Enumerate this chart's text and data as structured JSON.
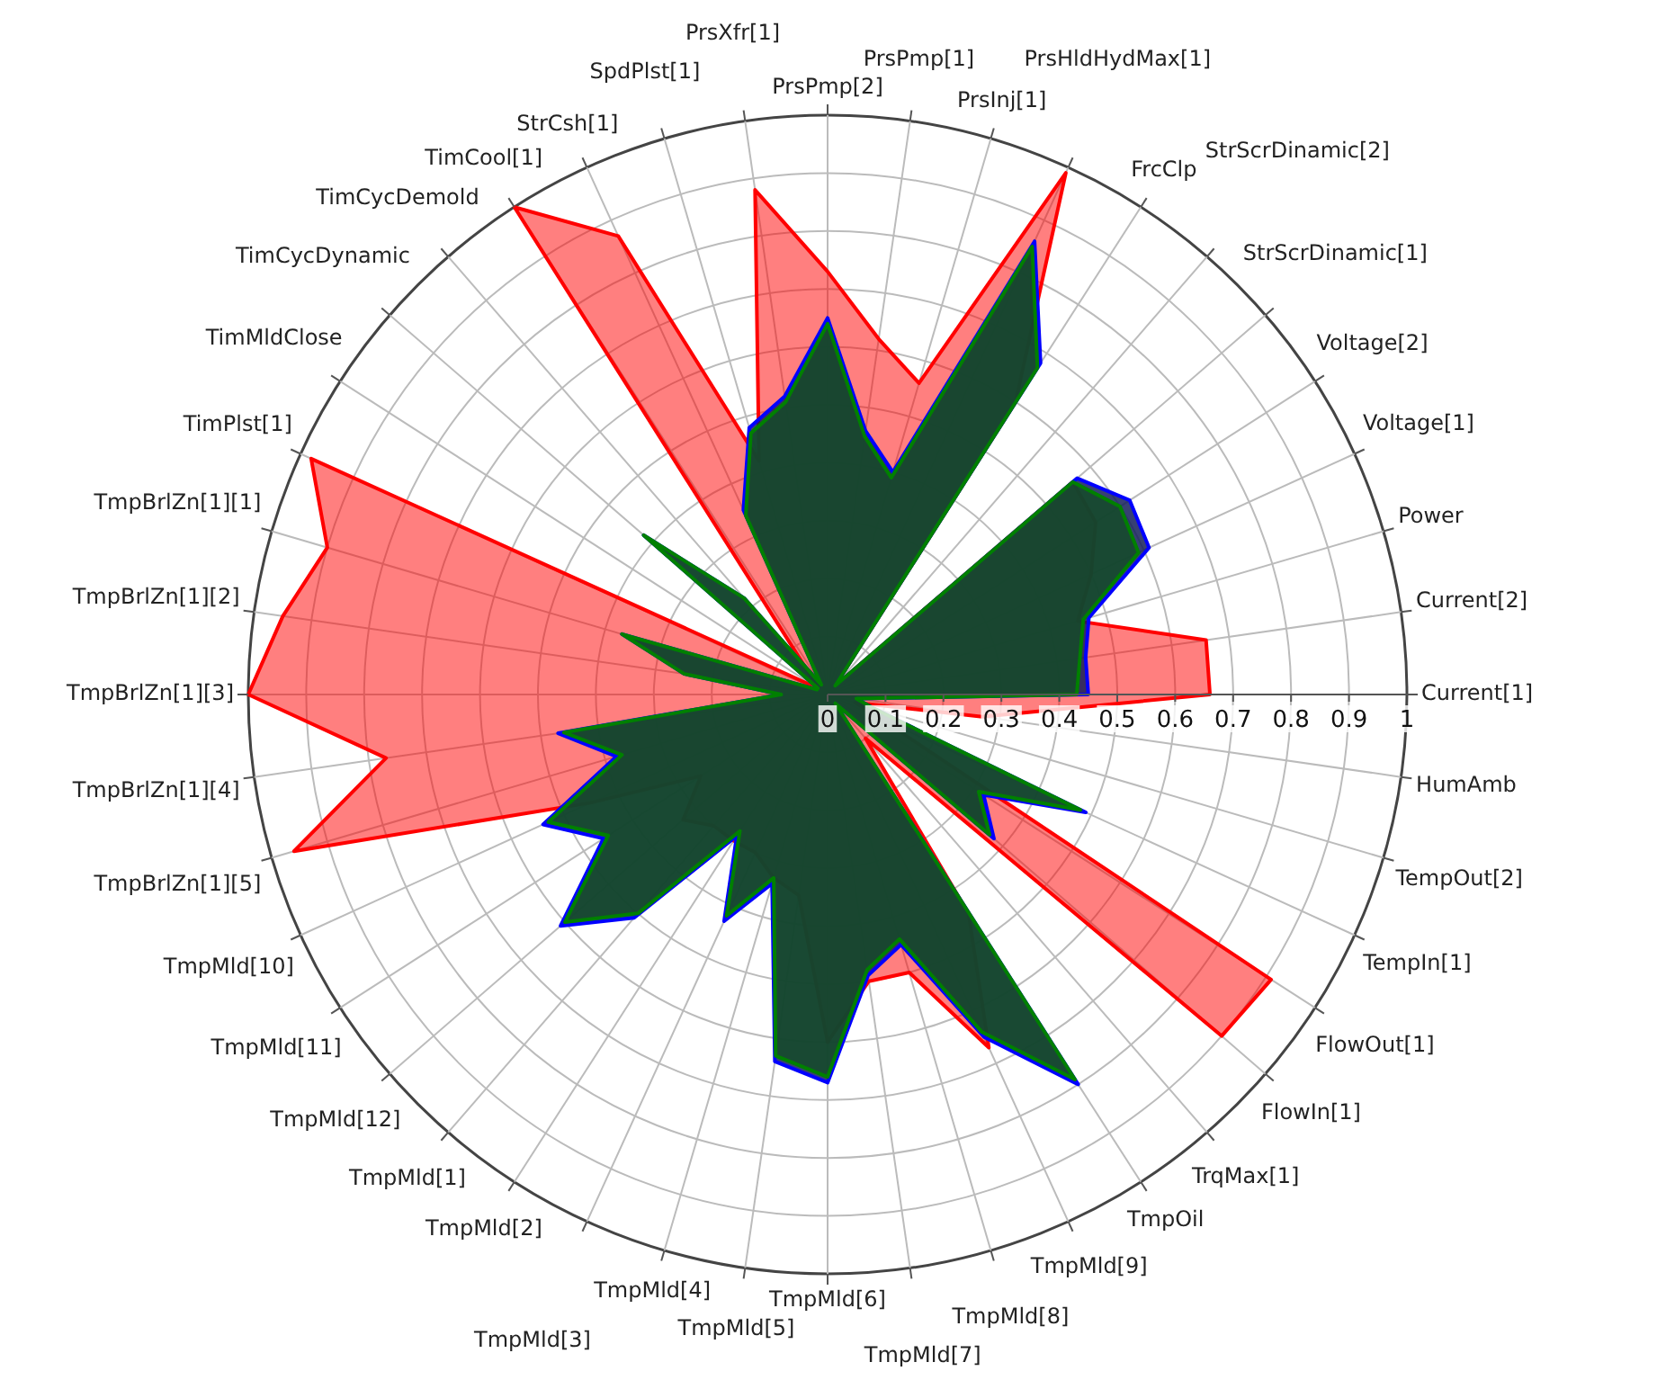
{
  "chart_data": {
    "type": "radar",
    "categories": [
      "PrsPmp[2]",
      "PrsPmp[1]",
      "PrsInj[1]",
      "PrsHldHydMax[1]",
      "FrcClp",
      "StrScrDinamic[2]",
      "StrScrDinamic[1]",
      "Voltage[2]",
      "Voltage[1]",
      "Power",
      "Current[2]",
      "Current[1]",
      "HumAmb",
      "TempOut[2]",
      "TempIn[1]",
      "FlowOut[1]",
      "FlowIn[1]",
      "TrqMax[1]",
      "TmpOil",
      "TmpMld[9]",
      "TmpMld[8]",
      "TmpMld[7]",
      "TmpMld[6]",
      "TmpMld[5]",
      "TmpMld[4]",
      "TmpMld[3]",
      "TmpMld[2]",
      "TmpMld[1]",
      "TmpMld[12]",
      "TmpMld[11]",
      "TmpMld[10]",
      "TmpBrlZn[1][5]",
      "TmpBrlZn[1][4]",
      "TmpBrlZn[1][3]",
      "TmpBrlZn[1][2]",
      "TmpBrlZn[1][1]",
      "TimPlst[1]",
      "TimMldClose",
      "TimCycDynamic",
      "TimCycDemold",
      "TimCool[1]",
      "StrCsh[1]",
      "SpdPlst[1]",
      "PrsXfr[1]"
    ],
    "series": [
      {
        "color": "#ff0000",
        "values": [
          0.73,
          0.62,
          0.56,
          0.99,
          0.6,
          0.02,
          0.56,
          0.55,
          0.5,
          0.45,
          0.66,
          0.66,
          0.27,
          0.05,
          0.1,
          0.91,
          0.9,
          0.1,
          0.45,
          0.67,
          0.5,
          0.5,
          0.6,
          0.35,
          0.33,
          0.3,
          0.3,
          0.3,
          0.33,
          0.26,
          0.45,
          0.96,
          0.77,
          1,
          0.95,
          0.9,
          0.98,
          0.02,
          0.02,
          0.05,
          1,
          0.87,
          0.42,
          0.88
        ]
      },
      {
        "color": "#0000ff",
        "values": [
          0.65,
          0.46,
          0.4,
          0.86,
          0.68,
          0.02,
          0.57,
          0.62,
          0.61,
          0.47,
          0.45,
          0.45,
          0.05,
          0.08,
          0.49,
          0.32,
          0.38,
          0.02,
          0.8,
          0.65,
          0.45,
          0.49,
          0.67,
          0.64,
          0.34,
          0.43,
          0.29,
          0.51,
          0.61,
          0.46,
          0.54,
          0.38,
          0.47,
          0.08,
          0.25,
          0.37,
          0.02,
          0.02,
          0.42,
          0.22,
          0.02,
          0.35,
          0.48,
          0.52
        ]
      },
      {
        "color": "#008000",
        "values": [
          0.64,
          0.45,
          0.39,
          0.85,
          0.67,
          0.02,
          0.56,
          0.6,
          0.59,
          0.46,
          0.44,
          0.43,
          0.05,
          0.08,
          0.48,
          0.31,
          0.37,
          0.02,
          0.79,
          0.64,
          0.44,
          0.48,
          0.66,
          0.63,
          0.33,
          0.42,
          0.28,
          0.5,
          0.6,
          0.45,
          0.53,
          0.37,
          0.46,
          0.08,
          0.25,
          0.37,
          0.02,
          0.02,
          0.42,
          0.22,
          0.02,
          0.34,
          0.47,
          0.51
        ]
      }
    ],
    "ylim": [
      0,
      1
    ],
    "yticks": [
      0,
      0.1,
      0.2,
      0.3,
      0.4,
      0.5,
      0.6,
      0.7,
      0.8,
      0.9,
      1
    ],
    "grid": true,
    "legend": false,
    "marker": "none"
  }
}
